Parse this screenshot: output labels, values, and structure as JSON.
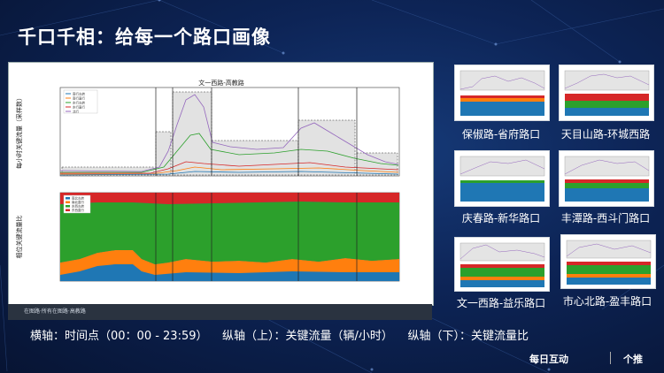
{
  "slide": {
    "title": "千口千相：给每一个路口画像",
    "footer": "横轴：时间点（00：00 - 23:59）    纵轴（上）：关键流量（辆/小时）    纵轴（下）：关键流量比",
    "logo_text": "每日互动",
    "logo2_text": "个推"
  },
  "main_chart": {
    "title": "文一西路-高教路",
    "ylabel_top": "每小时关键流量（采样数）",
    "ylabel_bottom": "相位关键流量比",
    "top_legend": [
      "南行左转",
      "南行直行",
      "东行左转",
      "东行直行",
      "北行"
    ],
    "bottom_legend": [
      "南北左转",
      "南北直行",
      "东西左转",
      "东西直行"
    ]
  },
  "map_strip": {
    "text": "在图路·所有在图路·高教路"
  },
  "thumbnails": [
    {
      "label": "保俶路-省府路口"
    },
    {
      "label": "天目山路-环城西路"
    },
    {
      "label": "庆春路-新华路口"
    },
    {
      "label": "丰潭路-西斗门路口"
    },
    {
      "label": "文一西路-益乐路口"
    },
    {
      "label": "市心北路-盈丰路口"
    }
  ],
  "colors": {
    "blue": "#1f77b4",
    "orange": "#ff7f0e",
    "green": "#2ca02c",
    "red": "#d62728",
    "purple": "#9467bd"
  }
}
